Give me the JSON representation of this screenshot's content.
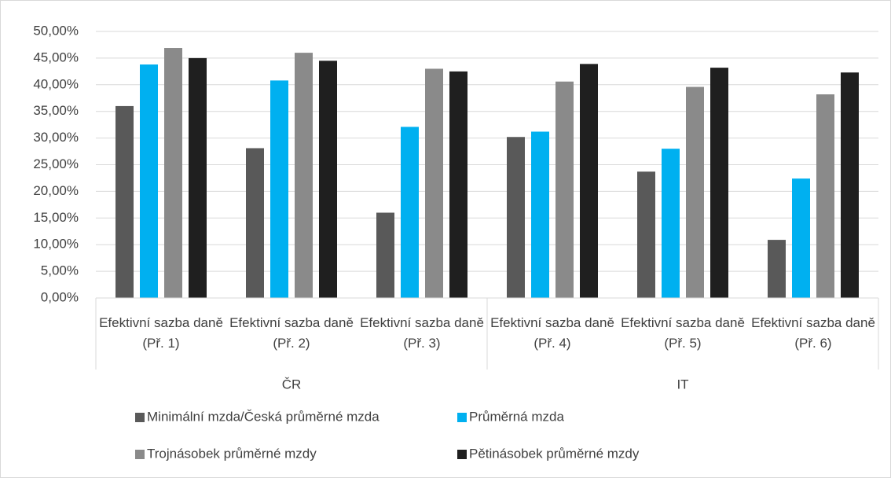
{
  "chart_data": {
    "type": "bar",
    "groups": [
      {
        "name": "ČR",
        "categories": [
          "Efektivní sazba daně (Př. 1)",
          "Efektivní sazba daně (Př. 2)",
          "Efektivní sazba daně (Př. 3)"
        ]
      },
      {
        "name": "IT",
        "categories": [
          "Efektivní sazba daně (Př. 4)",
          "Efektivní sazba daně (Př. 5)",
          "Efektivní sazba daně (Př. 6)"
        ]
      }
    ],
    "series": [
      {
        "name": "Minimální mzda/Česká průměrné mzda",
        "color": "#595959",
        "values": [
          36.0,
          28.1,
          16.0,
          30.2,
          23.7,
          10.9
        ]
      },
      {
        "name": "Průměrná mzda",
        "color": "#00b0f0",
        "values": [
          43.8,
          40.8,
          32.1,
          31.2,
          28.0,
          22.4
        ]
      },
      {
        "name": "Trojnásobek průměrné mzdy",
        "color": "#8a8a8a",
        "values": [
          46.9,
          46.0,
          43.0,
          40.6,
          39.6,
          38.2
        ]
      },
      {
        "name": "Pětinásobek průměrné mzdy",
        "color": "#1f1f1f",
        "values": [
          45.0,
          44.5,
          42.5,
          43.9,
          43.2,
          42.3
        ]
      }
    ],
    "ylim": [
      0,
      50
    ],
    "yticks": [
      {
        "value": 0,
        "label": "0,00%"
      },
      {
        "value": 5,
        "label": "5,00%"
      },
      {
        "value": 10,
        "label": "10,00%"
      },
      {
        "value": 15,
        "label": "15,00%"
      },
      {
        "value": 20,
        "label": "20,00%"
      },
      {
        "value": 25,
        "label": "25,00%"
      },
      {
        "value": 30,
        "label": "30,00%"
      },
      {
        "value": 35,
        "label": "35,00%"
      },
      {
        "value": 40,
        "label": "40,00%"
      },
      {
        "value": 45,
        "label": "45,00%"
      },
      {
        "value": 50,
        "label": "50,00%"
      }
    ],
    "grid": true
  }
}
